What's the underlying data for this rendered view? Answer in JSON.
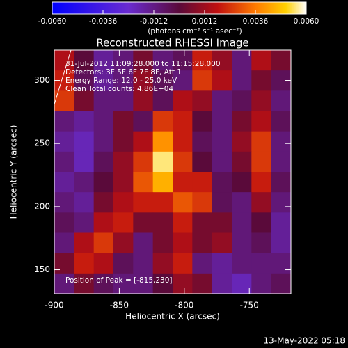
{
  "chart_data": {
    "type": "heatmap",
    "title": "Reconstructed RHESSI Image",
    "xlabel": "Heliocentric X (arcsec)",
    "ylabel": "Heliocentric Y (arcsec)",
    "colorbar_label": "(photons cm⁻² s⁻¹ asec⁻²)",
    "annotations": [
      "31-Jul-2012 11:09:28.000 to 11:15:28.000",
      "Detectors: 3F 5F 6F 7F 8F, Att 1",
      "Energy Range: 12.0 - 25.0 keV",
      "Clean    Total counts: 4.86E+04"
    ],
    "peak_label": "Position of Peak = [-815,230]",
    "timestamp": "13-May-2022 05:18",
    "xlim": [
      -900,
      -718
    ],
    "ylim": [
      131,
      324
    ],
    "xticks": [
      -900,
      -850,
      -800,
      -750
    ],
    "yticks": [
      150,
      200,
      250,
      300
    ],
    "zlim": [
      -0.006,
      0.006
    ],
    "zticks": [
      {
        "value": -0.006,
        "label": "-0.0060"
      },
      {
        "value": -0.0036,
        "label": "-0.0036"
      },
      {
        "value": -0.0012,
        "label": "-0.0012"
      },
      0.0012,
      0.0036,
      {
        "value": 0.006,
        "label": "0.0060"
      }
    ],
    "colorscale": [
      [
        0,
        "#0000ff"
      ],
      [
        0.3,
        "#6a2bd0"
      ],
      [
        0.5,
        "#5a0a3a"
      ],
      [
        0.65,
        "#c01010"
      ],
      [
        0.8,
        "#ff7a00"
      ],
      [
        0.92,
        "#ffd000"
      ],
      [
        1,
        "#ffffff"
      ]
    ],
    "z": [
      [
        0.0015,
        0,
        -0.0015,
        -0.001,
        0.0005,
        -0.001,
        -0.0005,
        0.002,
        0.001,
        -0.001,
        0.0015,
        0.0005
      ],
      [
        0.002,
        -0.0005,
        -0.0015,
        -0.001,
        0.001,
        -0.0005,
        -0.001,
        0.0025,
        0.0015,
        -0.001,
        0.0005,
        -0.0005
      ],
      [
        0.0025,
        0.0005,
        -0.001,
        -0.001,
        0.001,
        -0.0005,
        0.0015,
        0.001,
        -0.001,
        -0.0005,
        0.001,
        -0.001
      ],
      [
        -0.001,
        -0.0015,
        -0.001,
        0.0005,
        -0.0005,
        0.0025,
        0.002,
        0,
        -0.001,
        0.0005,
        0.0015,
        -0.0005
      ],
      [
        -0.0015,
        -0.002,
        -0.001,
        0.0005,
        0.0015,
        0.004,
        0.002,
        -0.0005,
        -0.001,
        0.001,
        0.0025,
        -0.001
      ],
      [
        -0.001,
        -0.002,
        -0.0005,
        0.001,
        0.0025,
        0.0055,
        0.0025,
        0,
        -0.001,
        0.0005,
        0.0025,
        -0.001
      ],
      [
        -0.0015,
        -0.001,
        0,
        0.001,
        0.003,
        0.0045,
        0.002,
        0.002,
        -0.0005,
        0,
        0.002,
        -0.0005
      ],
      [
        -0.001,
        -0.0015,
        0.0005,
        0.0015,
        0.002,
        0.002,
        0.003,
        0.0025,
        -0.0005,
        -0.001,
        0.001,
        -0.001
      ],
      [
        -0.0005,
        -0.001,
        0.0015,
        0.002,
        0.0005,
        0.0005,
        0.002,
        0.0005,
        0.0005,
        -0.001,
        0,
        -0.0015
      ],
      [
        -0.001,
        0.0015,
        0.0025,
        0.001,
        -0.001,
        0.0005,
        0.0015,
        0.0005,
        0.001,
        -0.001,
        -0.0005,
        -0.0015
      ],
      [
        0.0005,
        0.002,
        0.0015,
        -0.0005,
        -0.001,
        0.001,
        0.002,
        -0.001,
        -0.0015,
        -0.001,
        -0.001,
        -0.001
      ],
      [
        -0.001,
        0.0005,
        -0.0005,
        -0.001,
        -0.001,
        0,
        0.001,
        0.0005,
        -0.0015,
        -0.002,
        -0.001,
        -0.0005
      ]
    ]
  }
}
